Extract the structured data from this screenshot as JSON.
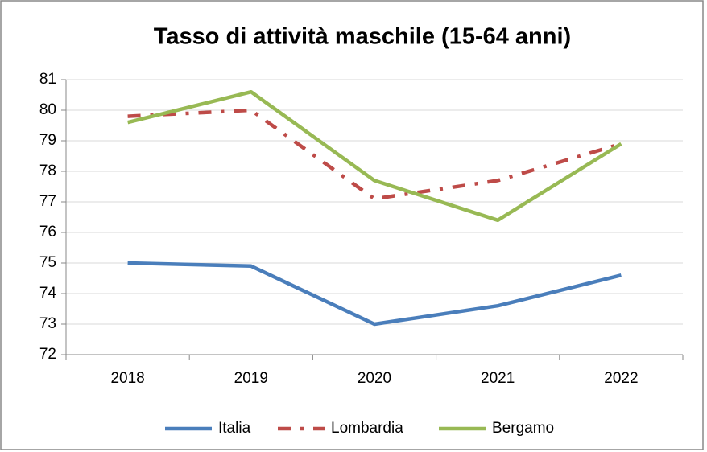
{
  "chart_data": {
    "type": "line",
    "title": "Tasso di attività maschile (15-64 anni)",
    "categories": [
      "2018",
      "2019",
      "2020",
      "2021",
      "2022"
    ],
    "series": [
      {
        "name": "Italia",
        "color": "#4a7ebb",
        "line_style": "solid",
        "values": [
          75.0,
          74.9,
          73.0,
          73.6,
          74.6
        ]
      },
      {
        "name": "Lombardia",
        "color": "#be4b48",
        "line_style": "dash-dot",
        "values": [
          79.8,
          80.0,
          77.1,
          77.7,
          78.9
        ]
      },
      {
        "name": "Bergamo",
        "color": "#98b954",
        "line_style": "solid",
        "values": [
          79.6,
          80.6,
          77.7,
          76.4,
          78.9
        ]
      }
    ],
    "ylim": [
      72,
      81
    ],
    "yticks": [
      72,
      73,
      74,
      75,
      76,
      77,
      78,
      79,
      80,
      81
    ],
    "grid": true,
    "legend": "bottom"
  }
}
